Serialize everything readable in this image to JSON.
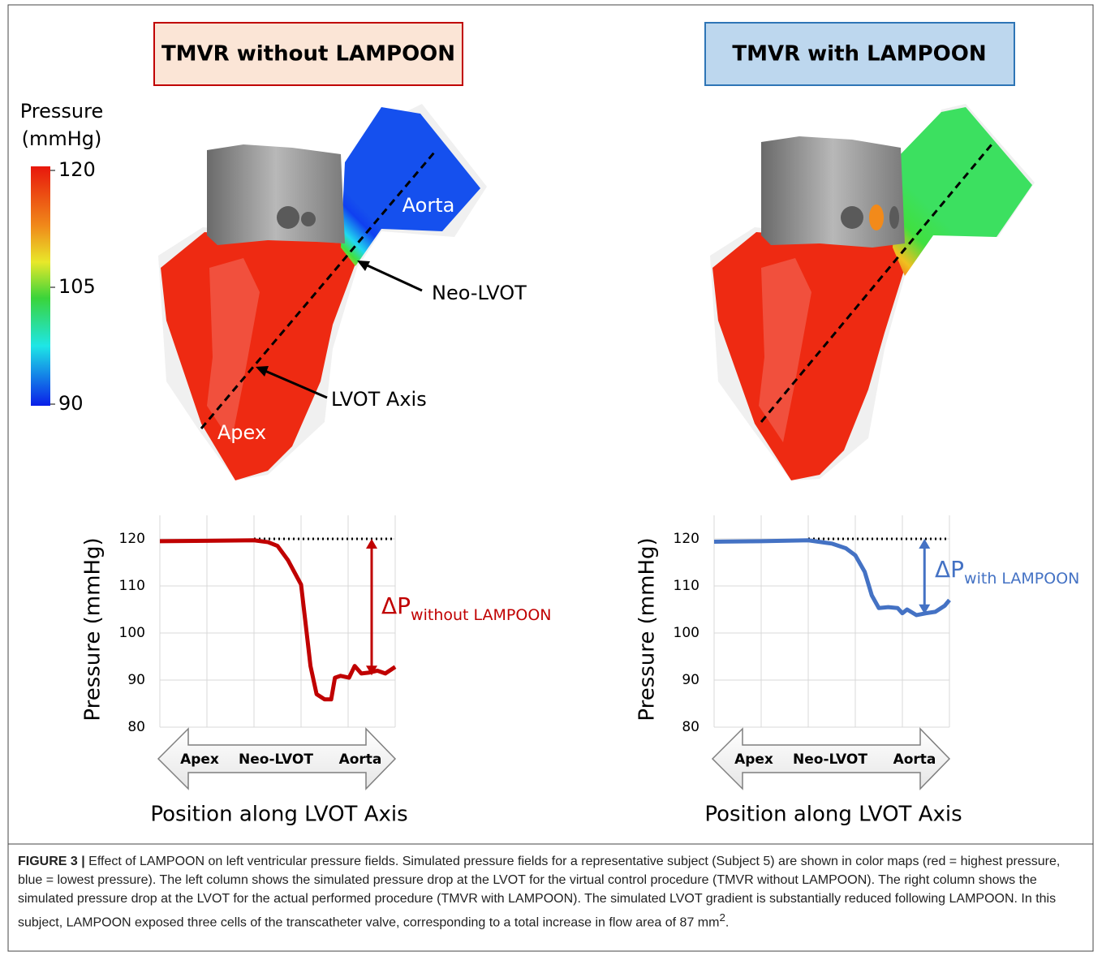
{
  "panels": [
    {
      "title": "TMVR without LAMPOON",
      "labels": [
        "Aorta",
        "Apex",
        "Neo-LVOT",
        "LVOT Axis"
      ]
    },
    {
      "title": "TMVR with LAMPOON"
    }
  ],
  "colorbar": {
    "title": [
      "Pressure",
      "(mmHg)"
    ],
    "lim": [
      90,
      120
    ],
    "ticks": [
      120,
      105,
      90
    ]
  },
  "chart_data": [
    {
      "type": "line",
      "color": "#c00000",
      "x": [
        0,
        1,
        2,
        2.3,
        2.5,
        2.72,
        3.0,
        3.1,
        3.2,
        3.33,
        3.5,
        3.64,
        3.72,
        3.84,
        4.02,
        4.14,
        4.28,
        4.45,
        4.62,
        4.79,
        5
      ],
      "values": [
        119.5,
        119.6,
        119.7,
        119.3,
        118.5,
        115.5,
        110.3,
        101.7,
        93,
        87,
        85.9,
        85.9,
        90.5,
        90.9,
        90.5,
        93,
        91.4,
        91.6,
        92,
        91.4,
        92.8
      ],
      "xlim": [
        0,
        5
      ],
      "ylim": [
        80,
        125
      ],
      "yticks": [
        80,
        90,
        100,
        110,
        120
      ],
      "grid": true,
      "y_label": "Pressure (mmHg)",
      "x_label": "Position along LVOT Axis",
      "position_labels": [
        "Apex",
        "Neo-LVOT",
        "Aorta"
      ],
      "reference_line": {
        "value": 120,
        "x_start": 2,
        "x_end": 5
      },
      "annotation": {
        "text": "ΔP",
        "subscript": "without LAMPOON",
        "from": 120,
        "to": 91
      }
    },
    {
      "type": "line",
      "color": "#4472c4",
      "x": [
        0,
        1,
        2,
        2.5,
        2.8,
        3.0,
        3.2,
        3.35,
        3.5,
        3.7,
        3.9,
        4.0,
        4.1,
        4.3,
        4.5,
        4.7,
        4.9,
        5
      ],
      "values": [
        119.4,
        119.5,
        119.7,
        119,
        118,
        116.5,
        113,
        108,
        105.3,
        105.5,
        105.3,
        104.2,
        105,
        103.8,
        104.2,
        104.5,
        105.8,
        107
      ],
      "xlim": [
        0,
        5
      ],
      "ylim": [
        80,
        125
      ],
      "yticks": [
        80,
        90,
        100,
        110,
        120
      ],
      "grid": true,
      "y_label": "Pressure (mmHg)",
      "x_label": "Position along LVOT Axis",
      "position_labels": [
        "Apex",
        "Neo-LVOT",
        "Aorta"
      ],
      "reference_line": {
        "value": 120,
        "x_start": 2,
        "x_end": 5
      },
      "annotation": {
        "text": "ΔP",
        "subscript": "with LAMPOON",
        "from": 120,
        "to": 104
      }
    }
  ],
  "caption": {
    "label": "FIGURE 3 |",
    "text": "Effect of LAMPOON on left ventricular pressure fields. Simulated pressure fields for a representative subject (Subject 5) are shown in color maps (red = highest pressure, blue = lowest pressure). The left column shows the simulated pressure drop at the LVOT for the virtual control procedure (TMVR without LAMPOON). The right column shows the simulated pressure drop at the LVOT for the actual performed procedure (TMVR with LAMPOON). The simulated LVOT gradient is substantially reduced following LAMPOON. In this subject, LAMPOON exposed three cells of the transcatheter valve, corresponding to a total increase in flow area of 87 mm",
    "superscript": "2",
    "end": "."
  }
}
